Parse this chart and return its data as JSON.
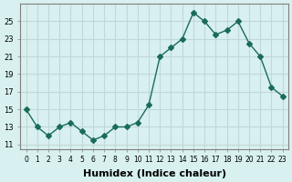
{
  "x": [
    0,
    1,
    2,
    3,
    4,
    5,
    6,
    7,
    8,
    9,
    10,
    11,
    12,
    13,
    14,
    15,
    16,
    17,
    18,
    19,
    20,
    21,
    22,
    23
  ],
  "y": [
    15,
    13,
    12,
    13,
    13.5,
    12.5,
    11.5,
    12,
    13,
    13,
    13.5,
    15.5,
    21,
    22,
    23,
    26,
    25,
    23.5,
    24,
    25,
    22.5,
    21,
    17.5,
    16.5
  ],
  "line_color": "#1a6b5a",
  "marker": "D",
  "marker_size": 3,
  "bg_color": "#d8f0f0",
  "grid_color": "#c0d8d8",
  "xlabel": "Humidex (Indice chaleur)",
  "xlabel_fontsize": 8,
  "ylabel_ticks": [
    11,
    13,
    15,
    17,
    19,
    21,
    23,
    25
  ],
  "xlim": [
    -0.5,
    23.5
  ],
  "ylim": [
    10.5,
    27
  ]
}
